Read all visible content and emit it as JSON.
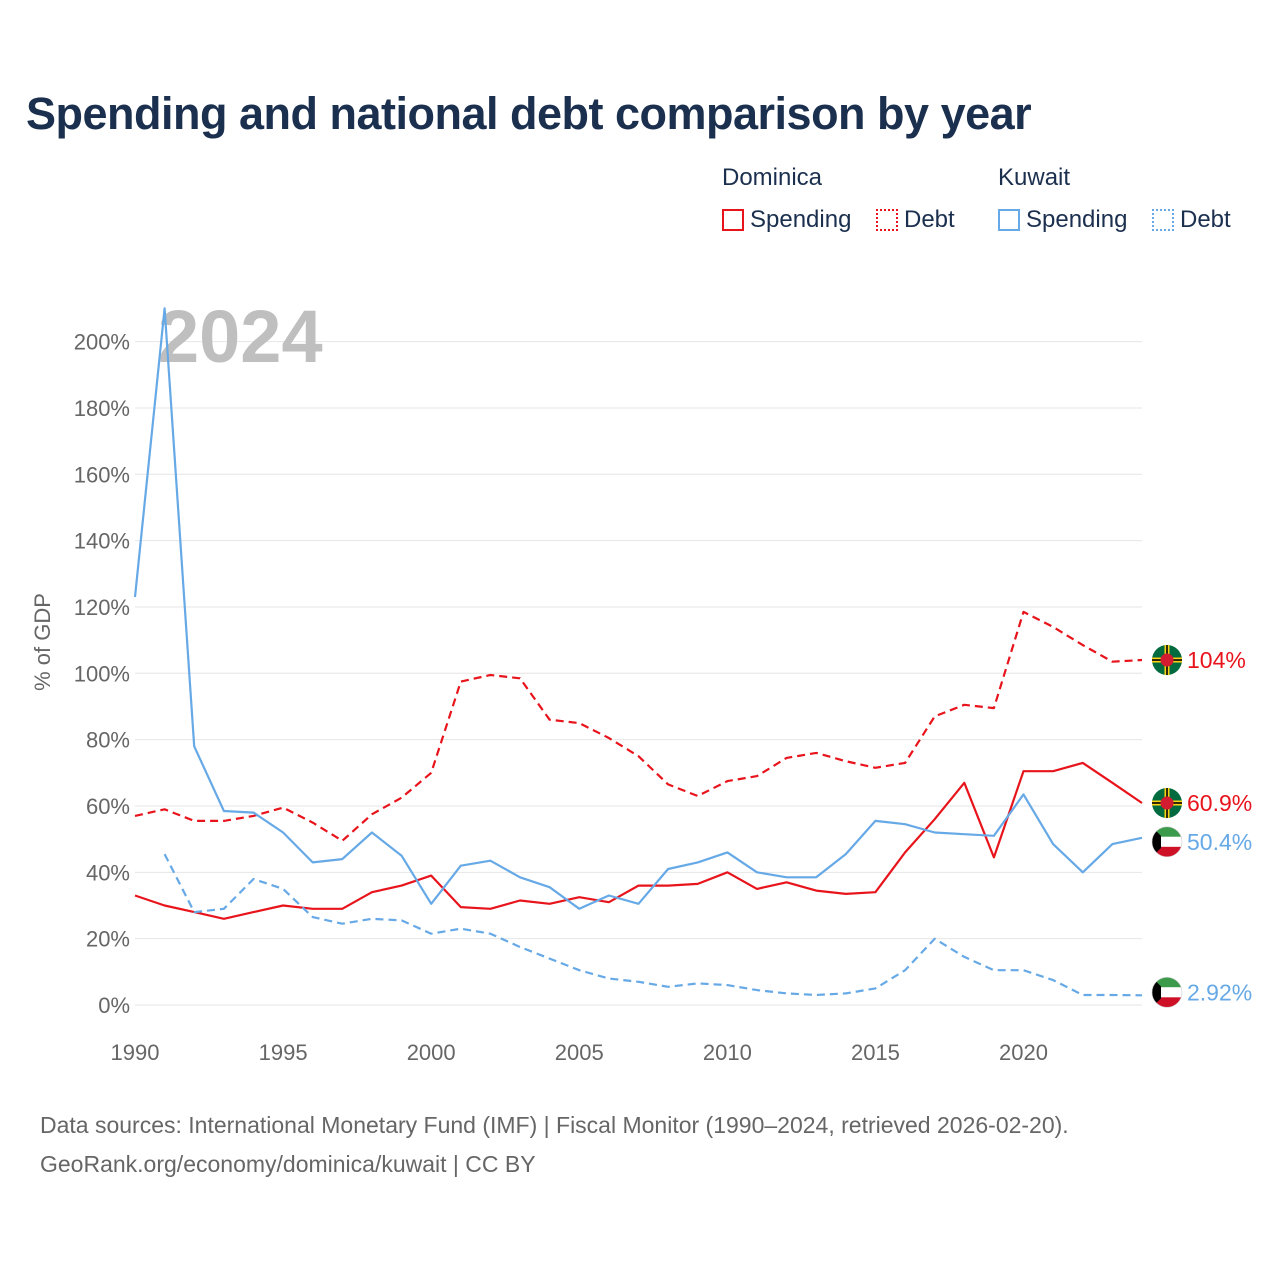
{
  "title": "Spending and national debt comparison by year",
  "legend": {
    "dominica": {
      "label": "Dominica",
      "spending": "Spending",
      "debt": "Debt"
    },
    "kuwait": {
      "label": "Kuwait",
      "spending": "Spending",
      "debt": "Debt"
    }
  },
  "colors": {
    "dominica": "#e8141c",
    "kuwait": "#66a9e6",
    "grid": "#e6e6e6",
    "axis_text": "#666666",
    "year_watermark": "#bfbfbf"
  },
  "year_label": "2024",
  "source": {
    "line1": "Data sources: International Monetary Fund (IMF) | Fiscal Monitor (1990–2024, retrieved 2026-02-20).",
    "line2": "GeoRank.org/economy/dominica/kuwait | CC BY"
  },
  "chart_data": {
    "type": "line",
    "title": "Spending and national debt comparison by year",
    "xlabel": "",
    "ylabel": "% of GDP",
    "xlim": [
      1990,
      2024
    ],
    "ylim": [
      0,
      210
    ],
    "x_ticks": [
      1990,
      1995,
      2000,
      2005,
      2010,
      2015,
      2020
    ],
    "y_ticks": [
      0,
      20,
      40,
      60,
      80,
      100,
      120,
      140,
      160,
      180,
      200
    ],
    "y_tick_labels": [
      "0%",
      "20%",
      "40%",
      "60%",
      "80%",
      "100%",
      "120%",
      "140%",
      "160%",
      "180%",
      "200%"
    ],
    "x_tick_labels": [
      "1990",
      "1995",
      "2000",
      "2005",
      "2010",
      "2015",
      "2020"
    ],
    "series": [
      {
        "name": "Dominica Debt",
        "country": "dominica",
        "style": "dashed",
        "end_label": "104%",
        "x": [
          1990,
          1991,
          1992,
          1993,
          1994,
          1995,
          1996,
          1997,
          1998,
          1999,
          2000,
          2001,
          2002,
          2003,
          2004,
          2005,
          2006,
          2007,
          2008,
          2009,
          2010,
          2011,
          2012,
          2013,
          2014,
          2015,
          2016,
          2017,
          2018,
          2019,
          2020,
          2021,
          2022,
          2023,
          2024
        ],
        "values": [
          57,
          59,
          55.5,
          55.5,
          57,
          59.5,
          55,
          49.5,
          57.5,
          62.5,
          70,
          97.5,
          99.5,
          98.5,
          86,
          85,
          80.5,
          75,
          66.5,
          63,
          67.5,
          69,
          74.5,
          76,
          73.5,
          71.5,
          73,
          87,
          90.5,
          89.5,
          118.5,
          114,
          108.5,
          103.5,
          104
        ]
      },
      {
        "name": "Dominica Spending",
        "country": "dominica",
        "style": "solid",
        "end_label": "60.9%",
        "x": [
          1990,
          1991,
          1992,
          1993,
          1994,
          1995,
          1996,
          1997,
          1998,
          1999,
          2000,
          2001,
          2002,
          2003,
          2004,
          2005,
          2006,
          2007,
          2008,
          2009,
          2010,
          2011,
          2012,
          2013,
          2014,
          2015,
          2016,
          2017,
          2018,
          2019,
          2020,
          2021,
          2022,
          2023,
          2024
        ],
        "values": [
          33,
          30,
          28,
          26,
          28,
          30,
          29,
          29,
          34,
          36,
          39,
          29.5,
          29,
          31.5,
          30.5,
          32.5,
          31,
          36,
          36,
          36.5,
          40,
          35,
          37,
          34.5,
          33.5,
          34,
          46,
          56,
          67,
          44.5,
          70.5,
          70.5,
          73,
          67,
          60.9
        ]
      },
      {
        "name": "Kuwait Spending",
        "country": "kuwait",
        "style": "solid",
        "end_label": "50.4%",
        "x": [
          1990,
          1991,
          1992,
          1993,
          1994,
          1995,
          1996,
          1997,
          1998,
          1999,
          2000,
          2001,
          2002,
          2003,
          2004,
          2005,
          2006,
          2007,
          2008,
          2009,
          2010,
          2011,
          2012,
          2013,
          2014,
          2015,
          2016,
          2017,
          2018,
          2019,
          2020,
          2021,
          2022,
          2023,
          2024
        ],
        "values": [
          123,
          210,
          78,
          58.5,
          58,
          52,
          43,
          44,
          52,
          45,
          30.5,
          42,
          43.5,
          38.5,
          35.5,
          29,
          33,
          30.5,
          41,
          43,
          46,
          40,
          38.5,
          38.5,
          45.5,
          55.5,
          54.5,
          52,
          51.5,
          51,
          63.5,
          48.5,
          40,
          48.5,
          50.4
        ]
      },
      {
        "name": "Kuwait Debt",
        "country": "kuwait",
        "style": "dashed",
        "end_label": "2.92%",
        "x": [
          1991,
          1992,
          1993,
          1994,
          1995,
          1996,
          1997,
          1998,
          1999,
          2000,
          2001,
          2002,
          2003,
          2004,
          2005,
          2006,
          2007,
          2008,
          2009,
          2010,
          2011,
          2012,
          2013,
          2014,
          2015,
          2016,
          2017,
          2018,
          2019,
          2020,
          2021,
          2022,
          2023,
          2024
        ],
        "values": [
          45.5,
          28,
          29,
          38,
          35,
          26.5,
          24.5,
          26,
          25.5,
          21.5,
          23,
          21.5,
          17.5,
          14,
          10.5,
          8,
          7,
          5.5,
          6.5,
          6,
          4.5,
          3.5,
          3,
          3.5,
          5,
          10.5,
          20,
          14.5,
          10.5,
          10.5,
          7.5,
          3,
          3,
          2.92
        ]
      }
    ]
  }
}
